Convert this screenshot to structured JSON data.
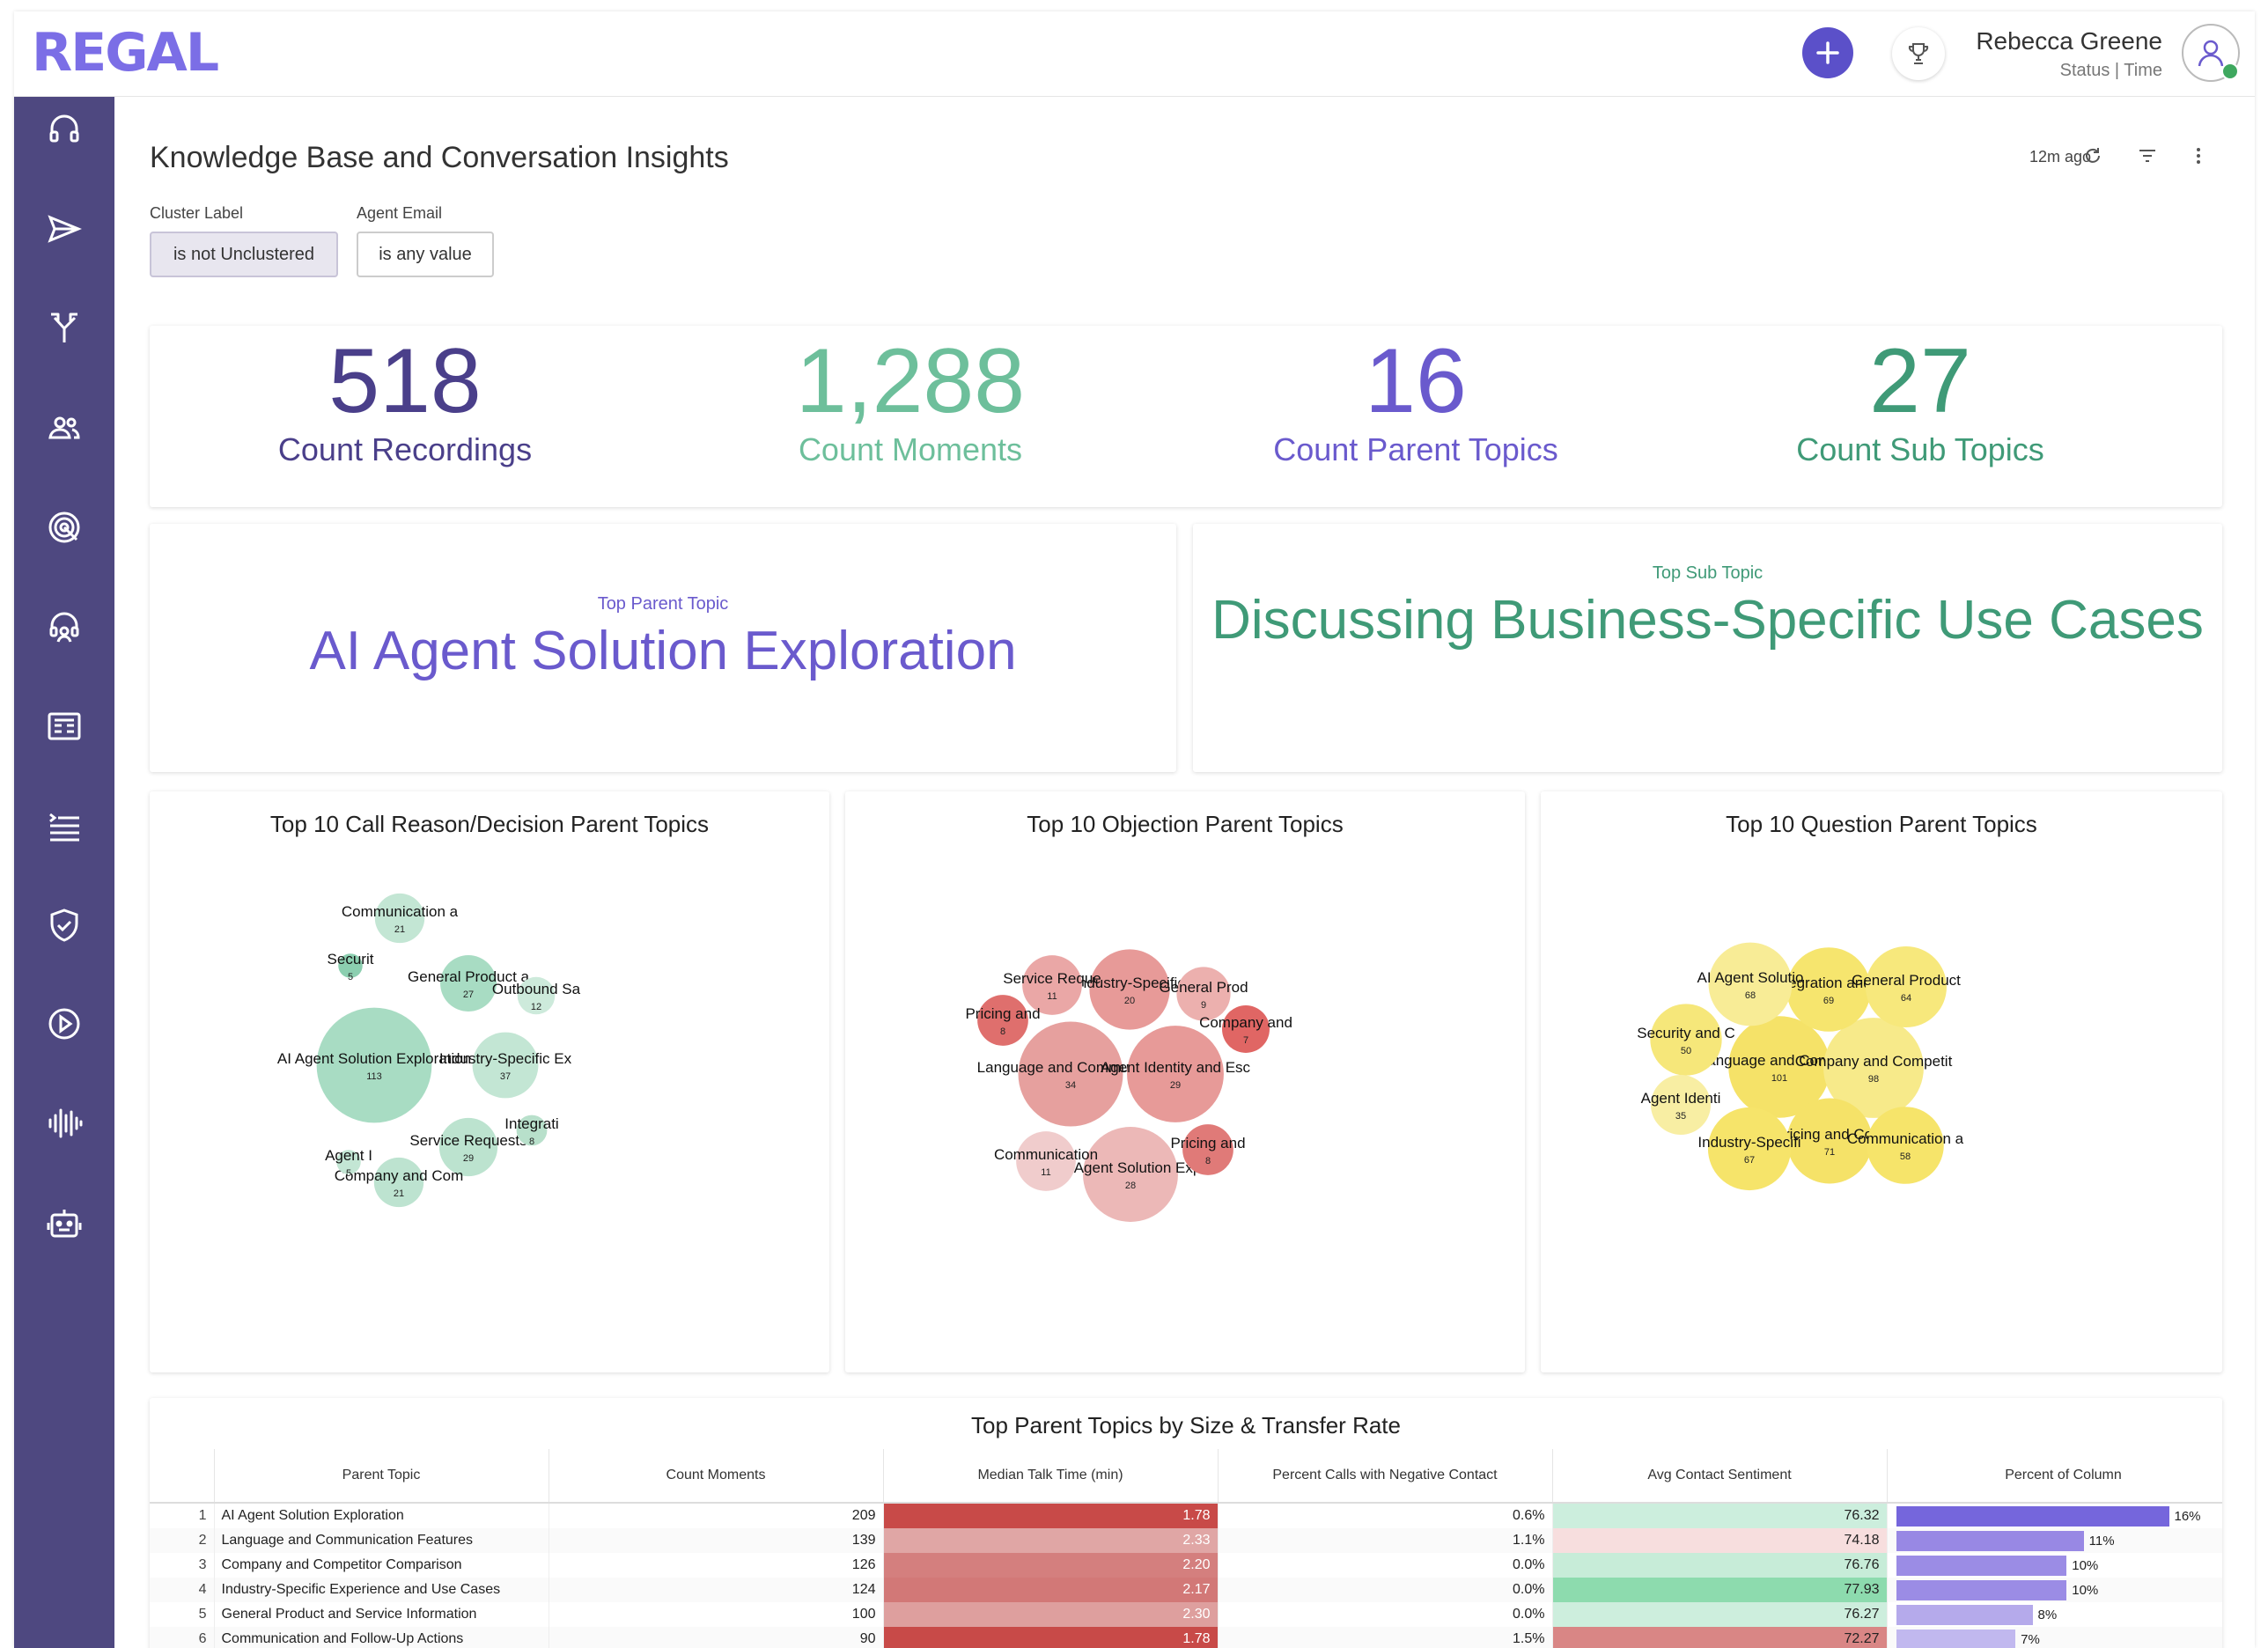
{
  "app": {
    "brand": "REGAL"
  },
  "user": {
    "name": "Rebecca Greene",
    "status": "Status | Time"
  },
  "sidebar": {
    "icons": [
      "headset-icon",
      "send-icon",
      "routing-icon",
      "contacts-icon",
      "target-icon",
      "support-agent-icon",
      "id-card-icon",
      "list-icon",
      "shield-check-icon",
      "play-icon",
      "audio-wave-icon",
      "robot-icon"
    ]
  },
  "dashboard": {
    "title": "Knowledge Base and Conversation Insights",
    "last_updated": "12m ago",
    "filters": [
      {
        "label": "Cluster Label",
        "value": "is not Unclustered"
      },
      {
        "label": "Agent Email",
        "value": "is any value"
      }
    ],
    "kpis": [
      {
        "value": "518",
        "label": "Count Recordings",
        "color": "#4a3f8a"
      },
      {
        "value": "1,288",
        "label": "Count Moments",
        "color": "#6dbf9b"
      },
      {
        "value": "16",
        "label": "Count Parent Topics",
        "color": "#6a5acd"
      },
      {
        "value": "27",
        "label": "Count Sub Topics",
        "color": "#3f9a77"
      }
    ],
    "top_parent": {
      "label": "Top Parent Topic",
      "value": "AI Agent Solution Exploration"
    },
    "top_sub": {
      "label": "Top Sub Topic",
      "value": "Discussing Business-Specific Use Cases"
    }
  },
  "chart_data": [
    {
      "type": "bubble",
      "title": "Top 10 Call Reason/Decision Parent Topics",
      "color": "#a8dcc3",
      "bubbles": [
        {
          "label": "AI Agent Solution Exploration",
          "value": 113
        },
        {
          "label": "Industry-Specific Ex",
          "value": 37
        },
        {
          "label": "Service Requests",
          "value": 29
        },
        {
          "label": "General Product a",
          "value": 27
        },
        {
          "label": "Communication a",
          "value": 21
        },
        {
          "label": "Company and Com",
          "value": 21
        },
        {
          "label": "Outbound Sa",
          "value": 12
        },
        {
          "label": "Integrati",
          "value": 8
        },
        {
          "label": "Securit",
          "value": 5
        },
        {
          "label": "Agent I",
          "value": 5
        }
      ]
    },
    {
      "type": "bubble",
      "title": "Top 10 Objection Parent Topics",
      "color": "#e79a98",
      "bubbles": [
        {
          "label": "Language and Communicati",
          "value": 34
        },
        {
          "label": "Agent Identity and Esc",
          "value": 29
        },
        {
          "label": "AI Agent Solution Expl",
          "value": 28
        },
        {
          "label": "Industry-Specific",
          "value": 20
        },
        {
          "label": "Service Reque",
          "value": 11
        },
        {
          "label": "Communication",
          "value": 11
        },
        {
          "label": "General Prod",
          "value": 9
        },
        {
          "label": "Pricing and",
          "value": 8
        },
        {
          "label": "Pricing and",
          "value": 8
        },
        {
          "label": "Company and",
          "value": 7
        }
      ]
    },
    {
      "type": "bubble",
      "title": "Top 10 Question Parent Topics",
      "color": "#f6e46a",
      "bubbles": [
        {
          "label": "Language and Commun",
          "value": 101
        },
        {
          "label": "Company and Competit",
          "value": 98
        },
        {
          "label": "Pricing and Cost",
          "value": 71
        },
        {
          "label": "Integration and S",
          "value": 69
        },
        {
          "label": "AI Agent Solutio",
          "value": 68
        },
        {
          "label": "Industry-Specifi",
          "value": 67
        },
        {
          "label": "General Product",
          "value": 64
        },
        {
          "label": "Communication a",
          "value": 58
        },
        {
          "label": "Security and C",
          "value": 50
        },
        {
          "label": "Agent Identi",
          "value": 35
        }
      ]
    },
    {
      "type": "table",
      "title": "Top Parent Topics by Size & Transfer Rate",
      "columns": [
        "",
        "Parent Topic",
        "Count Moments",
        "Median Talk Time (min)",
        "Percent Calls with Negative Contact",
        "Avg Contact Sentiment",
        "Percent of Column"
      ],
      "rows": [
        {
          "idx": "1",
          "topic": "AI Agent Solution Exploration",
          "count": "209",
          "talk": "1.78",
          "neg": "0.6%",
          "sent": "76.32",
          "pct": "16%",
          "pct_val": 16
        },
        {
          "idx": "2",
          "topic": "Language and Communication Features",
          "count": "139",
          "talk": "2.33",
          "neg": "1.1%",
          "sent": "74.18",
          "pct": "11%",
          "pct_val": 11
        },
        {
          "idx": "3",
          "topic": "Company and Competitor Comparison",
          "count": "126",
          "talk": "2.20",
          "neg": "0.0%",
          "sent": "76.76",
          "pct": "10%",
          "pct_val": 10
        },
        {
          "idx": "4",
          "topic": "Industry-Specific Experience and Use Cases",
          "count": "124",
          "talk": "2.17",
          "neg": "0.0%",
          "sent": "77.93",
          "pct": "10%",
          "pct_val": 10
        },
        {
          "idx": "5",
          "topic": "General Product and Service Information",
          "count": "100",
          "talk": "2.30",
          "neg": "0.0%",
          "sent": "76.27",
          "pct": "8%",
          "pct_val": 8
        },
        {
          "idx": "6",
          "topic": "Communication and Follow-Up Actions",
          "count": "90",
          "talk": "1.78",
          "neg": "1.5%",
          "sent": "72.27",
          "pct": "7%",
          "pct_val": 7
        }
      ]
    }
  ]
}
